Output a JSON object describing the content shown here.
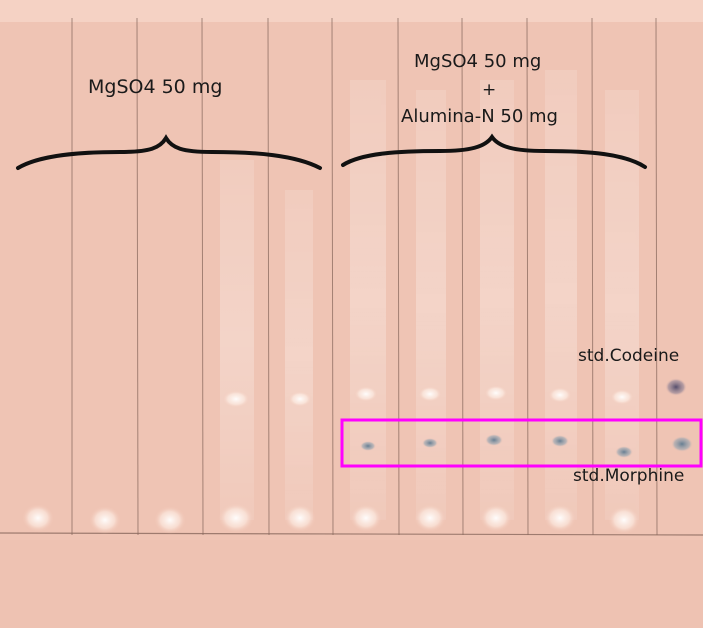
{
  "image": {
    "description_labels": {
      "group1_label": "MgSO4 50 mg",
      "group2_label_line1": "MgSO4 50 mg",
      "group2_label_plus": "+",
      "group2_label_line2": "Alumina-N 50 mg",
      "std_codeine_label": "std.Codeine",
      "std_morphine_label": "std.Morphine"
    },
    "colors": {
      "plate": "#f2c6b6",
      "highlight_box": "#ff00ff",
      "spot_dark": "#5e5a78",
      "spot_blue": "#6f8aa0",
      "lane_line": "#7a5a50"
    },
    "lane_count": 10
  }
}
